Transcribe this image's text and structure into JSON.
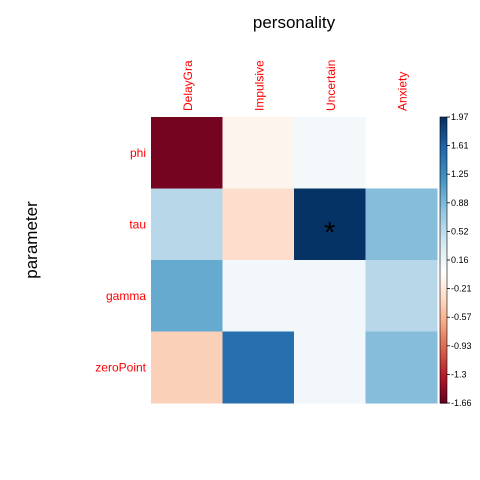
{
  "chart_data": {
    "type": "heatmap",
    "title": "personality",
    "ylabel": "parameter",
    "columns": [
      "DelayGra",
      "Impulsive",
      "Uncertain",
      "Anxiety"
    ],
    "rows": [
      "phi",
      "tau",
      "gamma",
      "zeroPoint"
    ],
    "values": [
      [
        -1.6,
        -0.1,
        0.1,
        0.0
      ],
      [
        0.55,
        -0.3,
        1.95,
        0.85
      ],
      [
        1.0,
        0.12,
        0.12,
        0.55
      ],
      [
        -0.4,
        1.5,
        0.12,
        0.85
      ]
    ],
    "annotations": [
      {
        "row": "tau",
        "column": "Uncertain",
        "text": "*"
      }
    ],
    "colorbar": {
      "ticks": [
        "1.97",
        "1.61",
        "1.25",
        "0.88",
        "0.52",
        "0.16",
        "-0.21",
        "-0.57",
        "-0.93",
        "-1.3",
        "-1.66"
      ],
      "min": -1.66,
      "max": 1.97
    },
    "colors": {
      "negative_end": "#67001f",
      "neutral": "#ffffff",
      "positive_end": "#053061",
      "label": "#ff0000"
    }
  }
}
